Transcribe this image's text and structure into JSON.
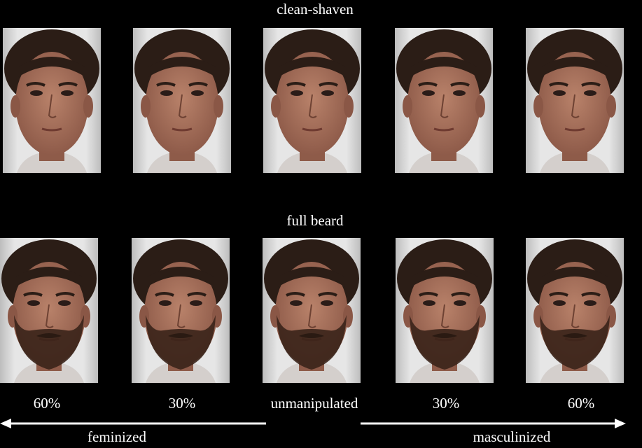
{
  "rows": [
    {
      "label": "clean-shaven"
    },
    {
      "label": "full beard"
    }
  ],
  "columns": [
    "60%",
    "30%",
    "unmanipulated",
    "30%",
    "60%"
  ],
  "arrows": {
    "left": "feminized",
    "right": "masculinized"
  }
}
